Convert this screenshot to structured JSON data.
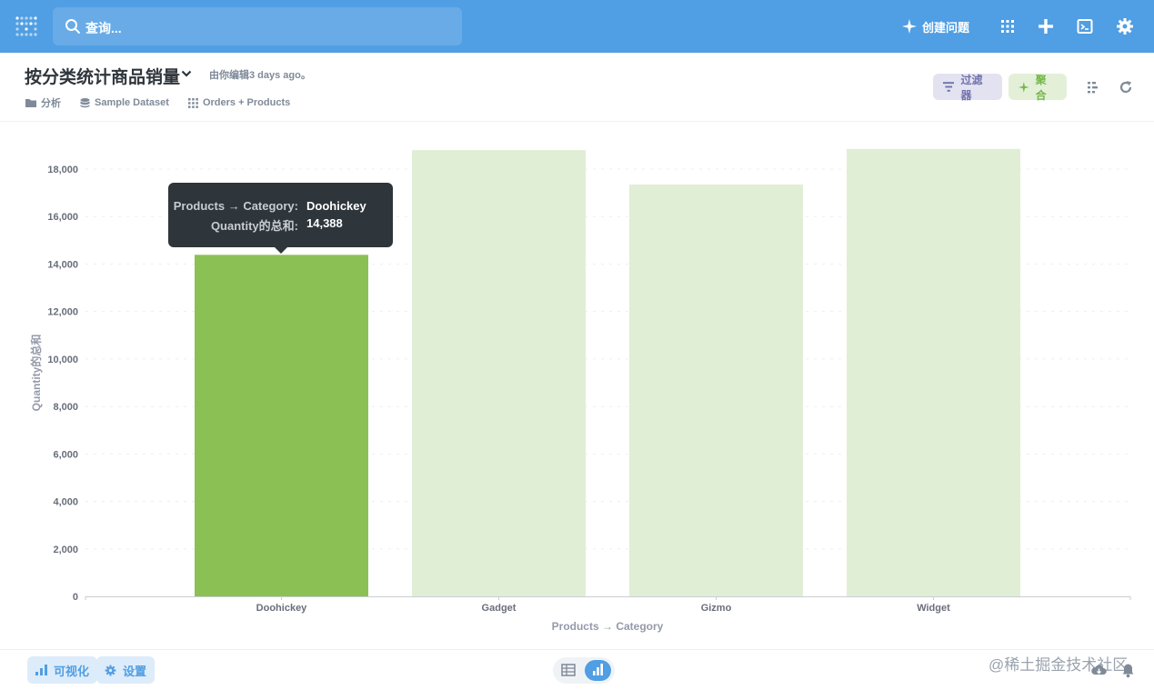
{
  "nav": {
    "search_placeholder": "查询...",
    "new_question_label": "创建问题"
  },
  "header": {
    "title": "按分类统计商品销量",
    "edited": "由你编辑3 days ago。",
    "breadcrumbs": [
      "分析",
      "Sample Dataset",
      "Orders + Products"
    ],
    "filter_label": "过滤器",
    "summarize_label": "聚合"
  },
  "tooltip": {
    "rows": [
      {
        "key": "Products → Category:",
        "value": "Doohickey"
      },
      {
        "key": "Quantity的总和:",
        "value": "14,388"
      }
    ]
  },
  "footer": {
    "visualize_label": "可视化",
    "settings_label": "设置",
    "watermark": "@稀土掘金技术社区"
  },
  "colors": {
    "nav": "#509ee3",
    "bar_active": "#8bc154",
    "bar_dim": "#e1eed6",
    "tooltip_bg": "#2e353b"
  },
  "chart_data": {
    "type": "bar",
    "categories": [
      "Doohickey",
      "Gadget",
      "Gizmo",
      "Widget"
    ],
    "values": [
      14388,
      18800,
      17350,
      18850
    ],
    "highlighted": "Doohickey",
    "xlabel": "Products → Category",
    "ylabel": "Quantity的总和",
    "ylim": [
      0,
      18000
    ],
    "yticks": [
      "0",
      "2,000",
      "4,000",
      "6,000",
      "8,000",
      "10,000",
      "12,000",
      "14,000",
      "16,000",
      "18,000"
    ],
    "grid": true,
    "legend": "none"
  }
}
